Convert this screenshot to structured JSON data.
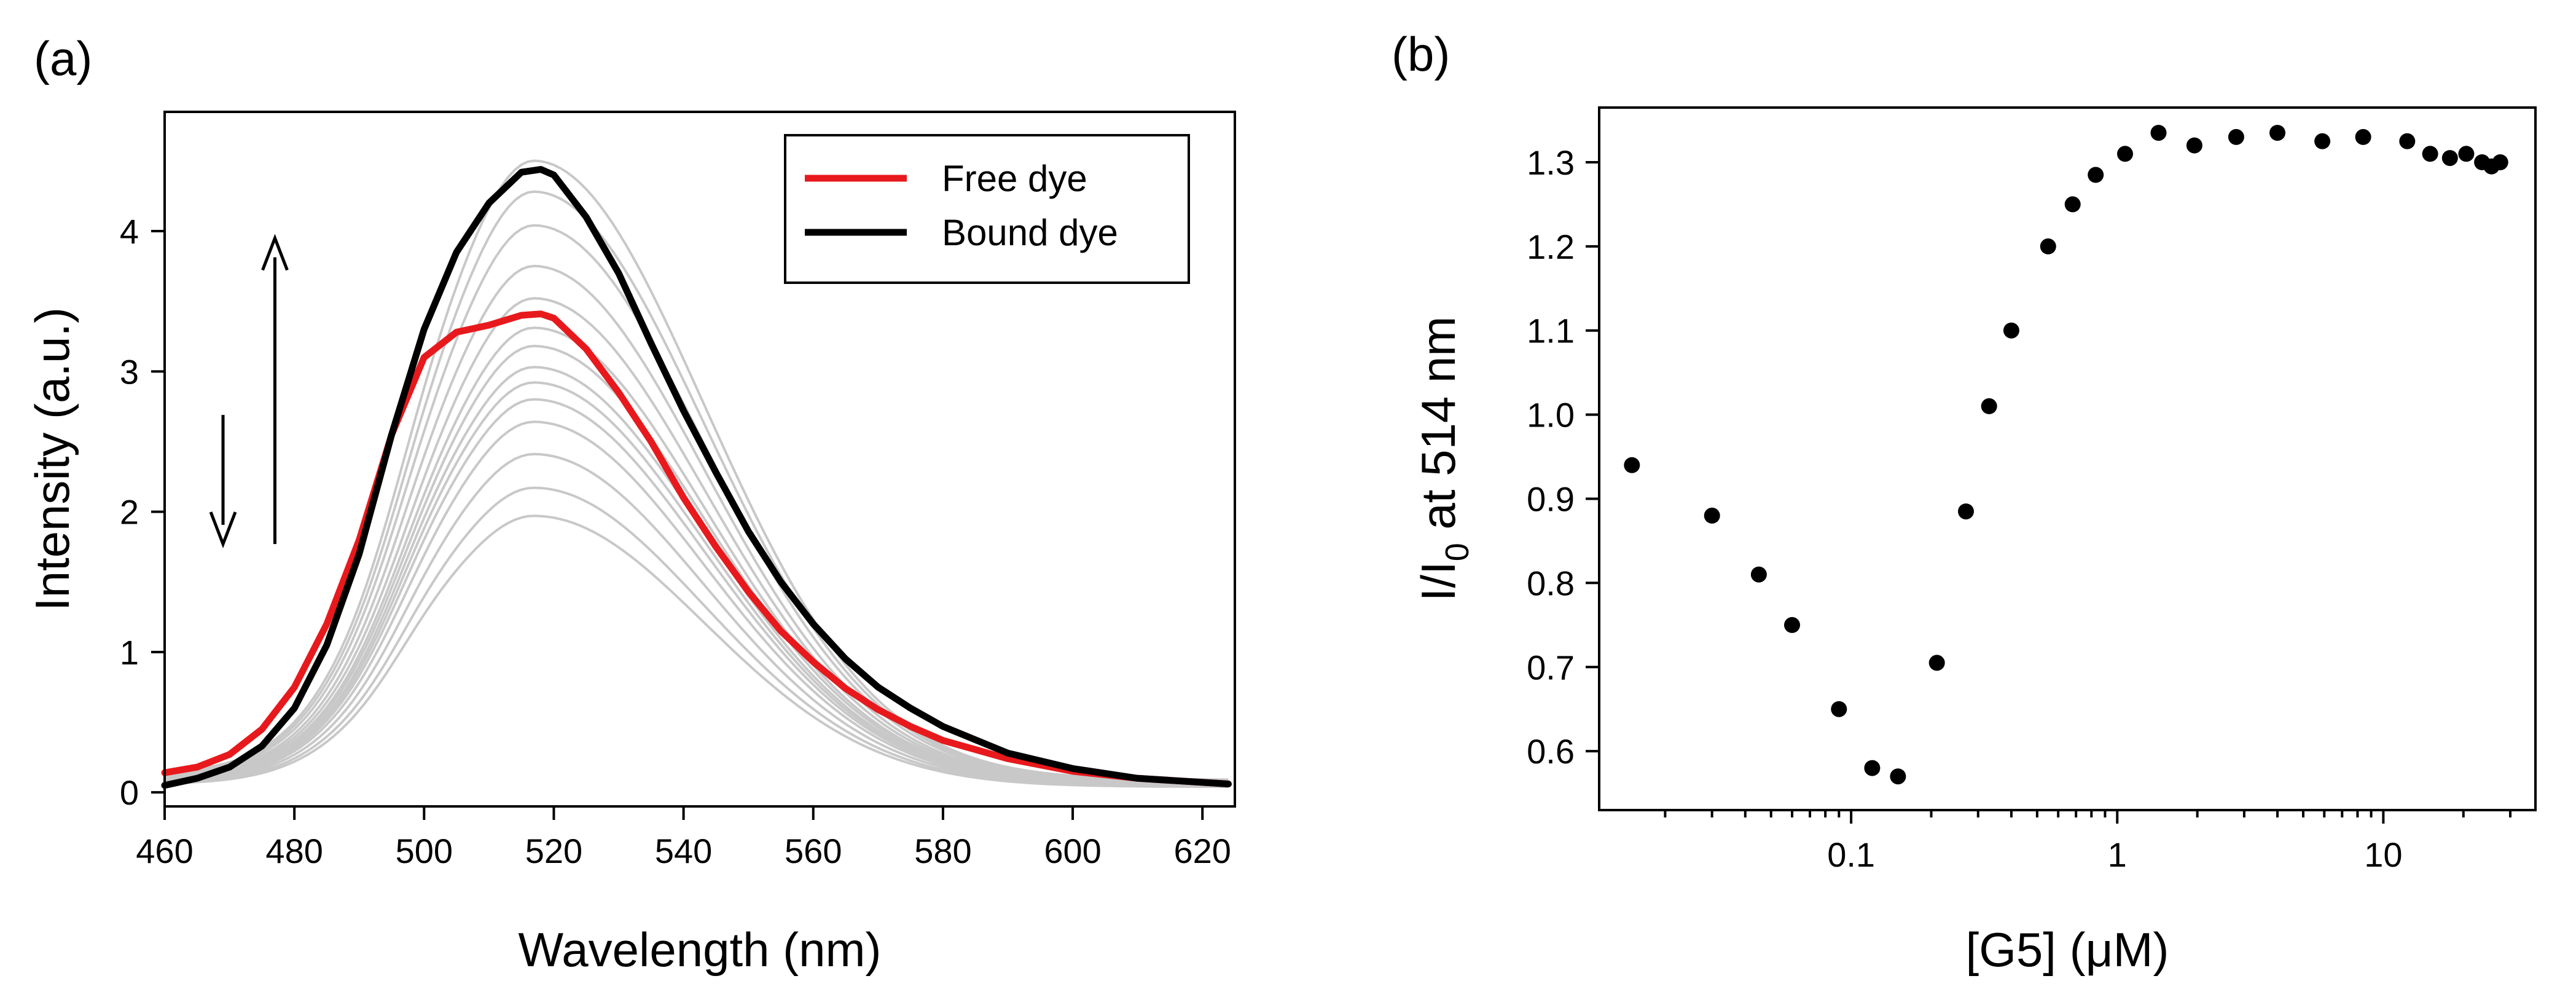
{
  "chart_data": [
    {
      "panel": "(a)",
      "type": "line",
      "title": "",
      "xlabel": "Wavelength (nm)",
      "ylabel": "Intensity (a.u.)",
      "xlim": [
        460,
        625
      ],
      "ylim": [
        -0.1,
        4.85
      ],
      "xticks": [
        460,
        480,
        500,
        520,
        540,
        560,
        580,
        600,
        620
      ],
      "yticks": [
        0,
        1,
        2,
        3,
        4
      ],
      "grid": false,
      "legend_position": "top-right",
      "legend": [
        {
          "label": "Free dye",
          "color": "#e8191c"
        },
        {
          "label": "Bound dye",
          "color": "#000000"
        }
      ],
      "series": [
        {
          "name": "Free dye",
          "color": "#e8191c",
          "width": 11,
          "x": [
            460,
            465,
            470,
            475,
            480,
            485,
            490,
            495,
            500,
            505,
            510,
            515,
            518,
            520,
            525,
            530,
            535,
            540,
            545,
            550,
            555,
            560,
            565,
            570,
            575,
            580,
            590,
            600,
            610,
            624
          ],
          "y": [
            0.14,
            0.18,
            0.27,
            0.45,
            0.75,
            1.2,
            1.8,
            2.55,
            3.1,
            3.28,
            3.33,
            3.4,
            3.41,
            3.38,
            3.16,
            2.85,
            2.5,
            2.1,
            1.75,
            1.43,
            1.15,
            0.93,
            0.74,
            0.59,
            0.47,
            0.37,
            0.24,
            0.15,
            0.1,
            0.06
          ]
        },
        {
          "name": "Bound dye",
          "color": "#000000",
          "width": 11,
          "x": [
            460,
            465,
            470,
            475,
            480,
            485,
            490,
            495,
            500,
            505,
            510,
            515,
            518,
            520,
            525,
            530,
            535,
            540,
            545,
            550,
            555,
            560,
            565,
            570,
            575,
            580,
            590,
            600,
            610,
            624
          ],
          "y": [
            0.05,
            0.1,
            0.18,
            0.33,
            0.6,
            1.05,
            1.7,
            2.55,
            3.3,
            3.85,
            4.2,
            4.42,
            4.44,
            4.4,
            4.1,
            3.7,
            3.2,
            2.72,
            2.28,
            1.86,
            1.5,
            1.2,
            0.95,
            0.75,
            0.6,
            0.47,
            0.28,
            0.17,
            0.1,
            0.06
          ]
        }
      ],
      "titration_curves": {
        "color": "#c8c8c8",
        "peak_values": [
          1.97,
          2.17,
          2.41,
          2.64,
          2.8,
          2.92,
          3.03,
          3.18,
          3.31,
          3.52,
          3.75,
          4.04,
          4.28,
          4.5
        ],
        "shoulder_values": [
          1.55,
          1.7,
          1.88,
          2.05,
          2.2,
          2.3,
          2.4,
          2.48,
          2.58,
          2.7,
          2.9,
          3.1,
          3.3,
          3.5
        ]
      },
      "annotations": [
        {
          "type": "arrow",
          "direction": "down",
          "x": 469,
          "y_from": 2.69,
          "y_to": 1.77
        },
        {
          "type": "arrow",
          "direction": "up",
          "x": 477,
          "y_from": 1.77,
          "y_to": 3.95
        }
      ]
    },
    {
      "panel": "(b)",
      "type": "scatter",
      "title": "",
      "xlabel": "[G5] (μM)",
      "ylabel_main": "I/I",
      "ylabel_sub": "0",
      "ylabel_rest": " at 514 nm",
      "xscale": "log",
      "xlim": [
        0.0113,
        37.3
      ],
      "ylim": [
        0.53,
        1.365
      ],
      "xticks": [
        0.1,
        1,
        10
      ],
      "xtick_labels": [
        "0.1",
        "1",
        "10"
      ],
      "yticks": [
        0.6,
        0.7,
        0.8,
        0.9,
        1.0,
        1.1,
        1.2,
        1.3
      ],
      "ytick_labels": [
        "0.6",
        "0.7",
        "0.8",
        "0.9",
        "1.0",
        "1.1",
        "1.2",
        "1.3"
      ],
      "grid": false,
      "color": "#000000",
      "x": [
        0.015,
        0.03,
        0.045,
        0.06,
        0.09,
        0.12,
        0.15,
        0.21,
        0.27,
        0.33,
        0.4,
        0.55,
        0.68,
        0.83,
        1.07,
        1.43,
        1.95,
        2.8,
        4.0,
        5.9,
        8.4,
        12.3,
        15.0,
        17.8,
        20.5,
        23.5,
        25.5,
        27.5
      ],
      "y": [
        0.94,
        0.88,
        0.81,
        0.75,
        0.65,
        0.58,
        0.57,
        0.705,
        0.885,
        1.01,
        1.1,
        1.2,
        1.25,
        1.285,
        1.31,
        1.335,
        1.32,
        1.33,
        1.335,
        1.325,
        1.33,
        1.325,
        1.31,
        1.305,
        1.31,
        1.3,
        1.295,
        1.3
      ]
    }
  ]
}
